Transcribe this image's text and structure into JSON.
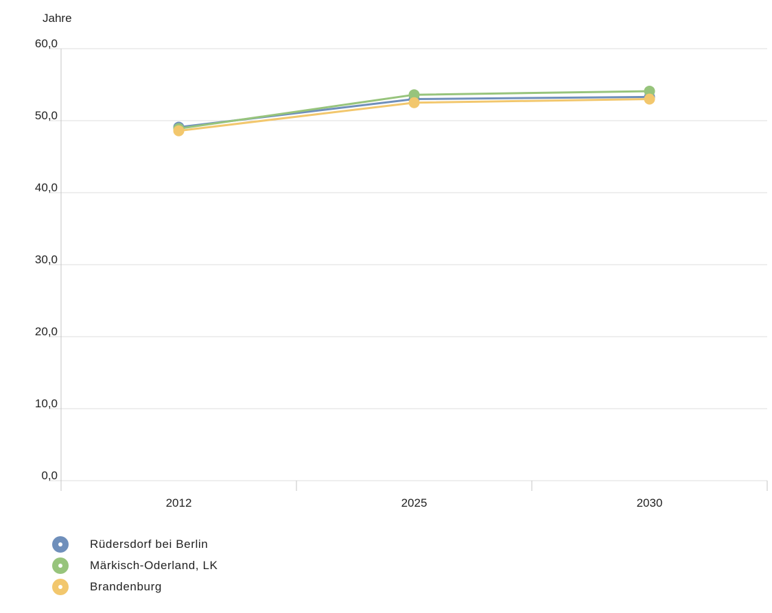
{
  "chart_data": {
    "type": "line",
    "unit_label": "Jahre",
    "categories": [
      "2012",
      "2025",
      "2030"
    ],
    "ylim": [
      0,
      60
    ],
    "yticks": [
      0,
      10,
      20,
      30,
      40,
      50,
      60
    ],
    "ytick_labels": [
      "0,0",
      "10,0",
      "20,0",
      "30,0",
      "40,0",
      "50,0",
      "60,0"
    ],
    "grid": true,
    "legend_position": "bottom-left",
    "series": [
      {
        "name": "Rüdersdorf bei Berlin",
        "color": "#6f8fbb",
        "values": [
          49.1,
          53.0,
          53.3
        ]
      },
      {
        "name": "Märkisch-Oderland, LK",
        "color": "#97c47c",
        "values": [
          48.9,
          53.6,
          54.1
        ]
      },
      {
        "name": "Brandenburg",
        "color": "#f2c76d",
        "values": [
          48.6,
          52.5,
          53.0
        ]
      }
    ]
  }
}
